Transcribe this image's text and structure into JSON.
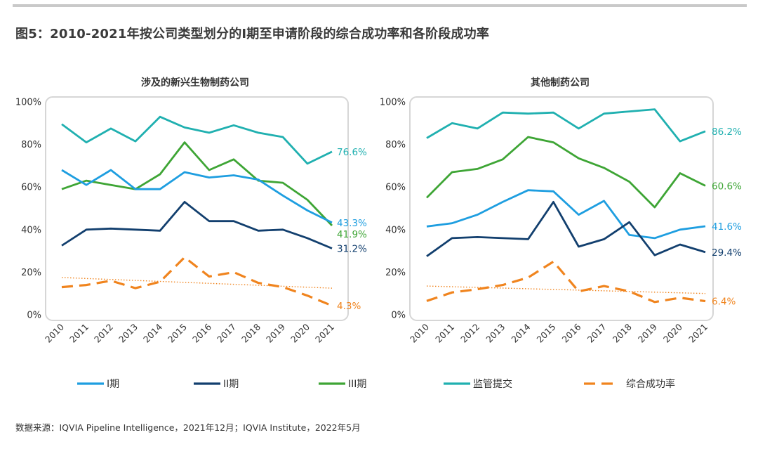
{
  "title": "图5：2010-2021年按公司类型划分的I期至申请阶段的综合成功率和各阶段成功率",
  "source": "数据来源：IQVIA Pipeline Intelligence，2021年12月；IQVIA Institute，2022年5月",
  "colors": {
    "phase1": "#1e9ee0",
    "phase2": "#123f6e",
    "phase3": "#3ea535",
    "filing": "#20b0b0",
    "composite": "#f0841e",
    "trend": "#f0841e"
  },
  "legend": [
    {
      "key": "phase1",
      "label": "I期"
    },
    {
      "key": "phase2",
      "label": "II期"
    },
    {
      "key": "phase3",
      "label": "III期"
    },
    {
      "key": "filing",
      "label": "监管提交"
    },
    {
      "key": "composite",
      "label": "综合成功率"
    }
  ],
  "chart_data": [
    {
      "type": "line",
      "title": "涉及的新兴生物制药公司",
      "x": [
        "2010",
        "2011",
        "2012",
        "2013",
        "2014",
        "2015",
        "2016",
        "2017",
        "2018",
        "2019",
        "2020",
        "2021"
      ],
      "yticks": [
        "0%",
        "20%",
        "40%",
        "60%",
        "80%",
        "100%"
      ],
      "ylim": [
        0,
        100
      ],
      "grid": false,
      "series": [
        {
          "key": "filing",
          "name": "监管提交",
          "values": [
            89.5,
            81,
            87.5,
            81.5,
            93,
            88,
            85.5,
            89,
            85.5,
            83.5,
            71,
            76.6
          ],
          "end_label": "76.6%"
        },
        {
          "key": "phase3",
          "name": "III期",
          "values": [
            59,
            63,
            61,
            59,
            66,
            81,
            68,
            73,
            63,
            62,
            54,
            41.9
          ],
          "end_label": "41.9%"
        },
        {
          "key": "phase1",
          "name": "I期",
          "values": [
            68,
            61,
            68,
            59,
            59,
            67,
            64.5,
            65.5,
            63.5,
            56,
            49,
            43.3
          ],
          "end_label": "43.3%"
        },
        {
          "key": "phase2",
          "name": "II期",
          "values": [
            32.5,
            40,
            40.5,
            40,
            39.5,
            53,
            44,
            44,
            39.5,
            40,
            36,
            31.2
          ],
          "end_label": "31.2%"
        },
        {
          "key": "composite",
          "name": "综合成功率",
          "dashed": true,
          "values": [
            13,
            14,
            16,
            12.5,
            15.5,
            27,
            18,
            20,
            15,
            13,
            9,
            4.3
          ],
          "end_label": "4.3%"
        }
      ],
      "trendline": [
        17.5,
        12.5
      ]
    },
    {
      "type": "line",
      "title": "其他制药公司",
      "x": [
        "2010",
        "2011",
        "2012",
        "2013",
        "2014",
        "2015",
        "2016",
        "2017",
        "2018",
        "2019",
        "2020",
        "2021"
      ],
      "yticks": [
        "0%",
        "20%",
        "40%",
        "60%",
        "80%",
        "100%"
      ],
      "ylim": [
        0,
        100
      ],
      "grid": false,
      "series": [
        {
          "key": "filing",
          "name": "监管提交",
          "values": [
            83,
            90,
            87.5,
            95,
            94.5,
            95,
            87.5,
            94.5,
            95.5,
            96.5,
            81.5,
            86.2
          ],
          "end_label": "86.2%"
        },
        {
          "key": "phase3",
          "name": "III期",
          "values": [
            55,
            67,
            68.5,
            73,
            83.5,
            81,
            73.5,
            69,
            62.5,
            50.5,
            66.5,
            60.6
          ],
          "end_label": "60.6%"
        },
        {
          "key": "phase1",
          "name": "I期",
          "values": [
            41.5,
            43,
            47,
            53,
            58.5,
            58,
            47,
            53.5,
            37.5,
            36,
            40,
            41.6
          ],
          "end_label": "41.6%"
        },
        {
          "key": "phase2",
          "name": "II期",
          "values": [
            27.5,
            36,
            36.5,
            36,
            35.5,
            53,
            32,
            35.5,
            43.5,
            28,
            33,
            29.4
          ],
          "end_label": "29.4%"
        },
        {
          "key": "composite",
          "name": "综合成功率",
          "dashed": true,
          "values": [
            6.5,
            10.5,
            12,
            14,
            17.5,
            25,
            11,
            13.5,
            11,
            6,
            8,
            6.4
          ],
          "end_label": "6.4%"
        }
      ],
      "trendline": [
        13.5,
        10
      ]
    }
  ]
}
